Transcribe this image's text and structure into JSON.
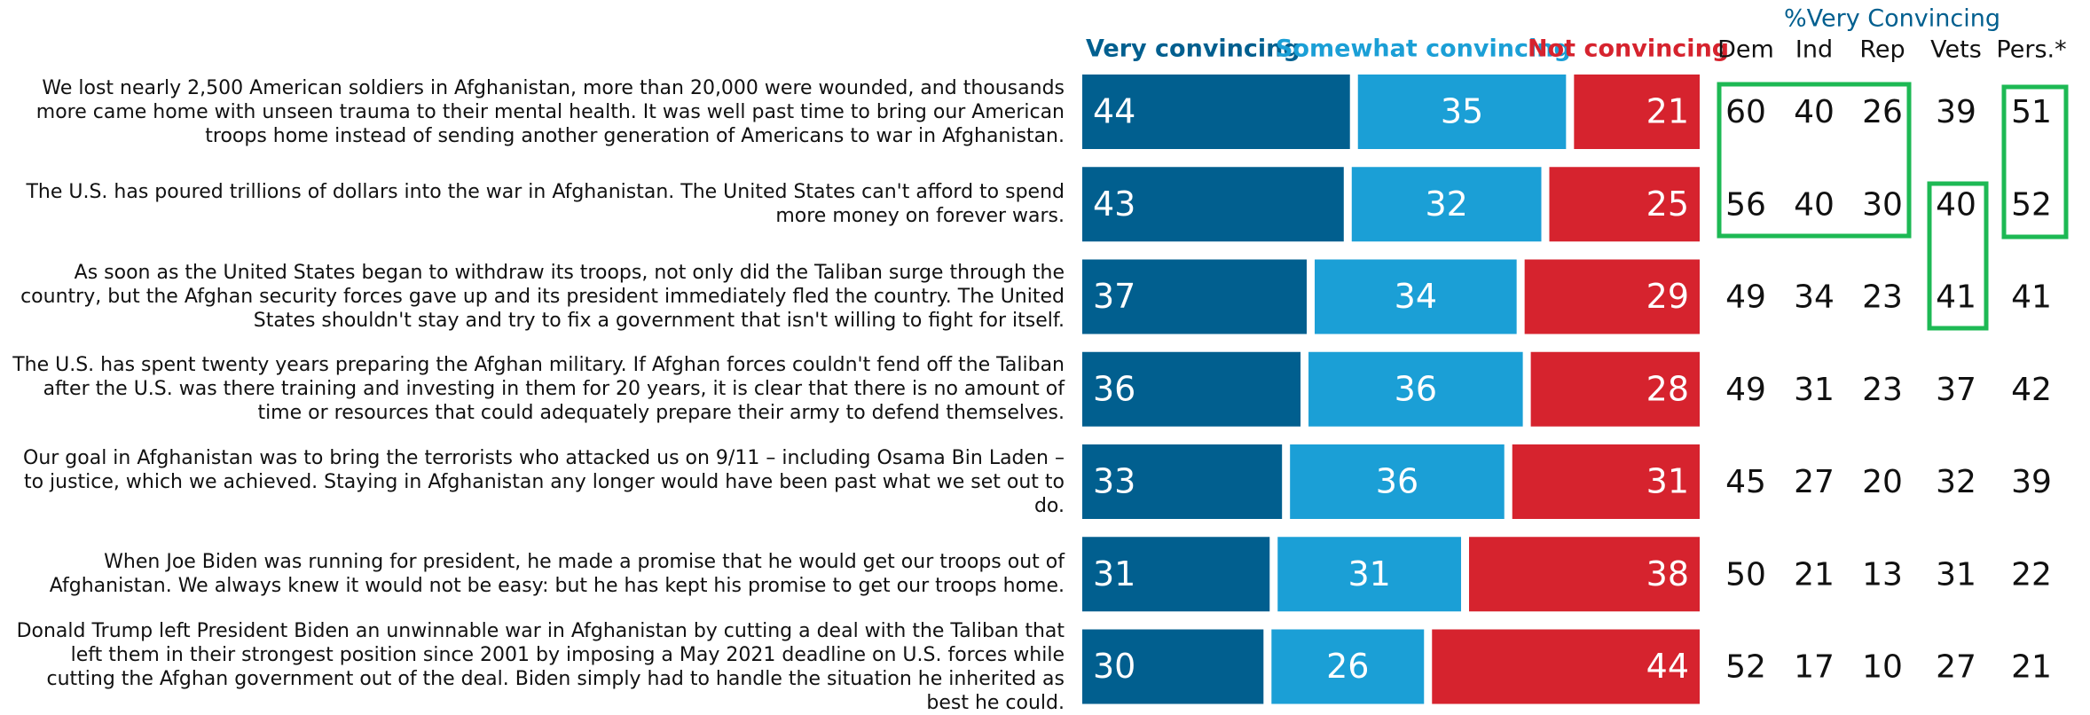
{
  "chart_data": {
    "type": "stacked-bar-h",
    "categories": [
      "We lost nearly 2,500 American soldiers in Afghanistan, more than 20,000 were wounded, and thousands more came home with unseen trauma to their mental health. It was well past time to bring our American troops home instead of sending another generation of Americans to war in Afghanistan.",
      "The U.S. has poured trillions of dollars into the war in Afghanistan. The United States can't afford to spend more money on forever wars.",
      "As soon as the United States began to withdraw its troops, not only did the Taliban surge through the country, but the Afghan security forces gave up and its president immediately fled the country. The United States shouldn't stay and try to fix a government that isn't willing to fight for itself.",
      "The U.S. has spent twenty years preparing the Afghan military. If Afghan forces couldn't fend off the Taliban after the U.S. was there training and investing in them for 20 years, it is clear that there is no amount of time or resources that could adequately prepare their army to defend themselves.",
      "Our goal in Afghanistan was to bring the terrorists who attacked us on 9/11 – including Osama Bin Laden – to justice, which we achieved. Staying in Afghanistan any longer would have been past what we set out to do.",
      "When Joe Biden was running for president, he made a promise that he would get our troops out of Afghanistan. We always knew it would not be easy: but he has kept his promise to get our troops home.",
      "Donald Trump left President Biden an unwinnable war in Afghanistan by cutting a deal with the Taliban that left them in their strongest position since 2001 by imposing a May 2021 deadline on U.S. forces while cutting the Afghan government out of the deal. Biden simply had to handle the situation he inherited as best he could."
    ],
    "series": [
      {
        "name": "Very convincing",
        "color": "#015f8f",
        "values": [
          44,
          43,
          37,
          36,
          33,
          31,
          30
        ]
      },
      {
        "name": "Somewhat convincing",
        "color": "#1b9fd6",
        "values": [
          35,
          32,
          34,
          36,
          36,
          31,
          26
        ]
      },
      {
        "name": "Not convincing",
        "color": "#d6232e",
        "values": [
          21,
          25,
          29,
          28,
          31,
          38,
          44
        ]
      }
    ],
    "xlim": [
      0,
      100
    ],
    "table": {
      "title": "%Very Convincing",
      "columns": [
        {
          "name": "Dem",
          "values": [
            60,
            56,
            49,
            49,
            45,
            50,
            52
          ]
        },
        {
          "name": "Ind",
          "values": [
            40,
            40,
            34,
            31,
            27,
            21,
            17
          ]
        },
        {
          "name": "Rep",
          "values": [
            26,
            30,
            23,
            23,
            20,
            13,
            10
          ]
        },
        {
          "name": "Vets",
          "values": [
            39,
            40,
            41,
            37,
            32,
            31,
            27
          ]
        },
        {
          "name": "Pers.*",
          "values": [
            51,
            52,
            41,
            42,
            39,
            22,
            21
          ]
        }
      ]
    }
  }
}
